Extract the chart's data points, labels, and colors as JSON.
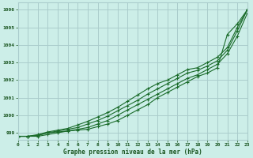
{
  "background_color": "#cceee8",
  "grid_color": "#aacccc",
  "line_color": "#1a6b2a",
  "marker_color": "#1a6b2a",
  "title": "Graphe pression niveau de la mer (hPa)",
  "title_color": "#1a5520",
  "tick_color": "#1a5520",
  "ylim": [
    998.6,
    1006.4
  ],
  "xlim": [
    0,
    23
  ],
  "yticks": [
    999,
    1000,
    1001,
    1002,
    1003,
    1004,
    1005,
    1006
  ],
  "xticks": [
    0,
    1,
    2,
    3,
    4,
    5,
    6,
    7,
    8,
    9,
    10,
    11,
    12,
    13,
    14,
    15,
    16,
    17,
    18,
    19,
    20,
    21,
    22,
    23
  ],
  "series": [
    [
      998.8,
      998.8,
      998.8,
      998.9,
      999.0,
      999.1,
      999.15,
      999.2,
      999.35,
      999.5,
      999.7,
      1000.0,
      1000.3,
      1000.6,
      1001.0,
      1001.3,
      1001.6,
      1001.9,
      1002.2,
      1002.4,
      1002.7,
      1004.6,
      1005.2,
      1006.0
    ],
    [
      998.8,
      998.8,
      998.85,
      999.0,
      999.05,
      999.1,
      999.2,
      999.3,
      999.5,
      999.7,
      1000.0,
      1000.3,
      1000.6,
      1000.9,
      1001.2,
      1001.5,
      1001.8,
      1002.1,
      1002.3,
      1002.6,
      1002.9,
      1003.5,
      1004.5,
      1005.8
    ],
    [
      998.8,
      998.8,
      998.85,
      999.0,
      999.1,
      999.2,
      999.3,
      999.5,
      999.7,
      999.95,
      1000.25,
      1000.55,
      1000.85,
      1001.2,
      1001.5,
      1001.8,
      1002.1,
      1002.4,
      1002.55,
      1002.8,
      1003.1,
      1003.7,
      1004.8,
      1006.0
    ],
    [
      998.8,
      998.8,
      998.9,
      999.05,
      999.15,
      999.25,
      999.45,
      999.65,
      999.9,
      1000.15,
      1000.45,
      1000.8,
      1001.15,
      1001.5,
      1001.8,
      1002.0,
      1002.3,
      1002.6,
      1002.7,
      1003.0,
      1003.3,
      1003.85,
      1005.0,
      1006.0
    ]
  ]
}
